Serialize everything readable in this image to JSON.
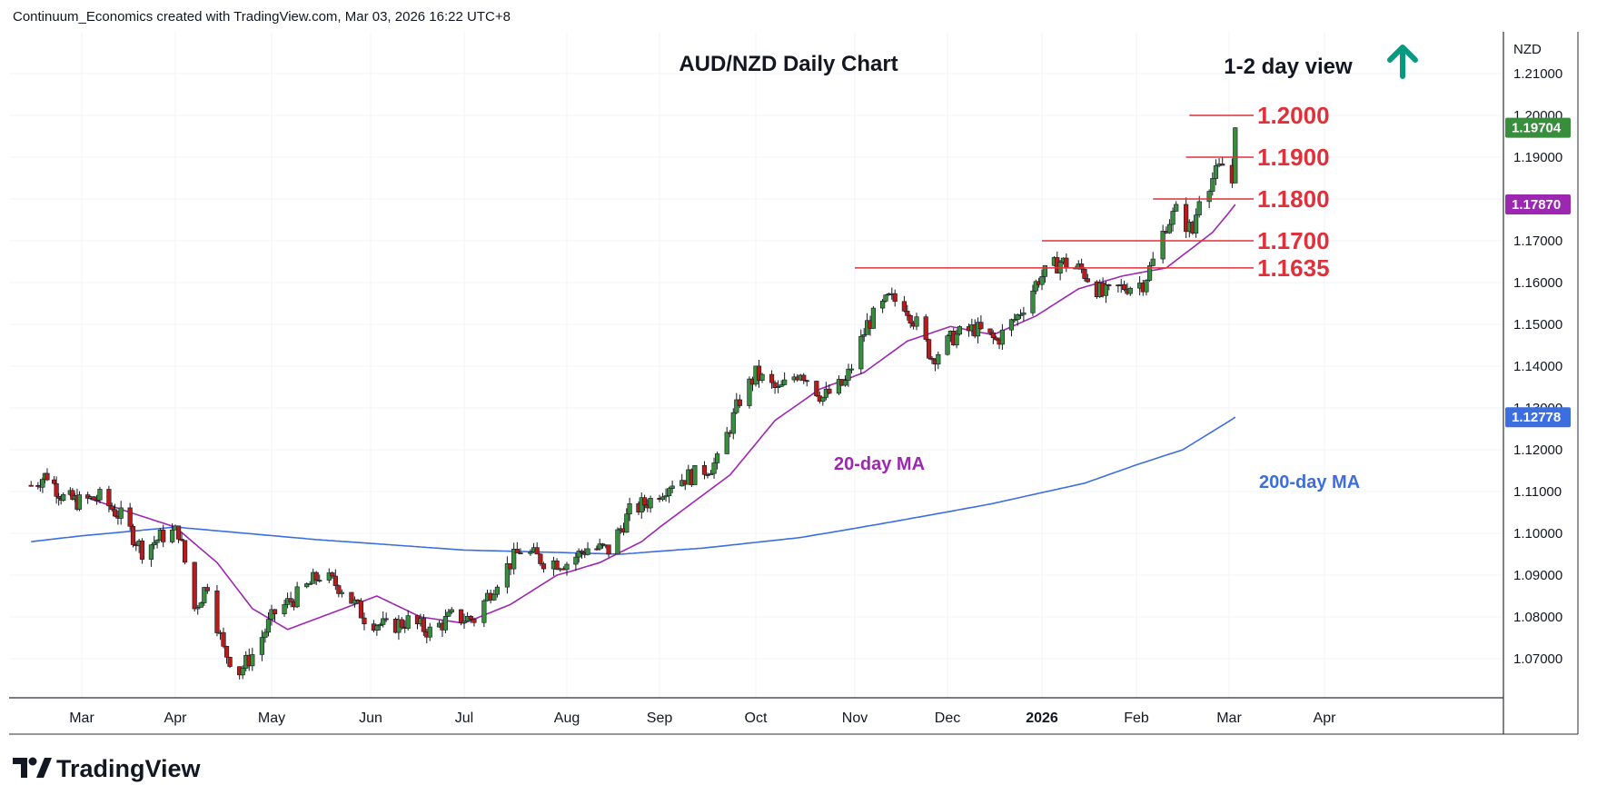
{
  "header_text": "Continuum_Economics created with TradingView.com, Mar 03, 2026 16:22 UTC+8",
  "brand": {
    "name": "TradingView",
    "icon": "tradingview-logo-icon"
  },
  "view_label": "1-2 day view",
  "view_arrow": {
    "icon": "arrow-up-icon",
    "color": "#089981"
  },
  "colors": {
    "up": "#388e3c",
    "down": "#b71c1c",
    "level": "#e0303a",
    "ma20": "#9c27b0",
    "ma200": "#3c6ee0",
    "arrow": "#089981"
  },
  "chart_data": {
    "type": "candlestick",
    "title": "AUD/NZD Daily Chart",
    "currency": "NZD",
    "ylim": [
      1.06,
      1.22
    ],
    "y_ticks": [
      "1.21000",
      "1.20000",
      "1.19000",
      "1.18000",
      "1.17000",
      "1.16000",
      "1.15000",
      "1.14000",
      "1.13000",
      "1.12000",
      "1.11000",
      "1.10000",
      "1.09000",
      "1.08000",
      "1.07000"
    ],
    "x_ticks": [
      {
        "label": "Mar",
        "date": "2025-03-01"
      },
      {
        "label": "Apr",
        "date": "2025-04-01"
      },
      {
        "label": "May",
        "date": "2025-05-01"
      },
      {
        "label": "Jun",
        "date": "2025-06-01"
      },
      {
        "label": "Jul",
        "date": "2025-07-01"
      },
      {
        "label": "Aug",
        "date": "2025-08-01"
      },
      {
        "label": "Sep",
        "date": "2025-09-01"
      },
      {
        "label": "Oct",
        "date": "2025-10-01"
      },
      {
        "label": "Nov",
        "date": "2025-11-01"
      },
      {
        "label": "Dec",
        "date": "2025-12-01"
      },
      {
        "label": "2026",
        "date": "2026-01-01",
        "bold": true
      },
      {
        "label": "Feb",
        "date": "2026-02-01"
      },
      {
        "label": "Mar",
        "date": "2026-03-01"
      },
      {
        "label": "Apr",
        "date": "2026-04-01"
      }
    ],
    "price_path": [
      [
        "2025-02-07",
        1.1115
      ],
      [
        "2025-02-14",
        1.114
      ],
      [
        "2025-02-21",
        1.1085
      ],
      [
        "2025-02-28",
        1.1075
      ],
      [
        "2025-03-07",
        1.1085
      ],
      [
        "2025-03-14",
        1.104
      ],
      [
        "2025-03-21",
        1.096
      ],
      [
        "2025-03-28",
        1.0995
      ],
      [
        "2025-04-02",
        1.1005
      ],
      [
        "2025-04-07",
        1.082
      ],
      [
        "2025-04-11",
        1.088
      ],
      [
        "2025-04-16",
        1.072
      ],
      [
        "2025-04-21",
        1.067
      ],
      [
        "2025-04-25",
        1.071
      ],
      [
        "2025-05-02",
        1.081
      ],
      [
        "2025-05-09",
        1.085
      ],
      [
        "2025-05-16",
        1.09
      ],
      [
        "2025-05-23",
        1.087
      ],
      [
        "2025-05-30",
        1.08
      ],
      [
        "2025-06-06",
        1.0775
      ],
      [
        "2025-06-13",
        1.079
      ],
      [
        "2025-06-20",
        1.0765
      ],
      [
        "2025-06-27",
        1.08
      ],
      [
        "2025-07-04",
        1.0795
      ],
      [
        "2025-07-11",
        1.089
      ],
      [
        "2025-07-18",
        1.096
      ],
      [
        "2025-07-25",
        1.0935
      ],
      [
        "2025-08-01",
        1.093
      ],
      [
        "2025-08-08",
        1.0965
      ],
      [
        "2025-08-15",
        1.096
      ],
      [
        "2025-08-22",
        1.105
      ],
      [
        "2025-08-29",
        1.108
      ],
      [
        "2025-09-05",
        1.1125
      ],
      [
        "2025-09-12",
        1.114
      ],
      [
        "2025-09-19",
        1.117
      ],
      [
        "2025-09-26",
        1.132
      ],
      [
        "2025-10-01",
        1.138
      ],
      [
        "2025-10-08",
        1.134
      ],
      [
        "2025-10-15",
        1.139
      ],
      [
        "2025-10-22",
        1.1325
      ],
      [
        "2025-10-29",
        1.136
      ],
      [
        "2025-11-05",
        1.15
      ],
      [
        "2025-11-12",
        1.156
      ],
      [
        "2025-11-17",
        1.155
      ],
      [
        "2025-11-21",
        1.15
      ],
      [
        "2025-11-26",
        1.142
      ],
      [
        "2025-12-03",
        1.147
      ],
      [
        "2025-12-10",
        1.149
      ],
      [
        "2025-12-17",
        1.146
      ],
      [
        "2025-12-24",
        1.152
      ],
      [
        "2025-12-31",
        1.161
      ],
      [
        "2026-01-07",
        1.165
      ],
      [
        "2026-01-14",
        1.163
      ],
      [
        "2026-01-21",
        1.157
      ],
      [
        "2026-01-28",
        1.159
      ],
      [
        "2026-02-03",
        1.16
      ],
      [
        "2026-02-06",
        1.165
      ],
      [
        "2026-02-10",
        1.174
      ],
      [
        "2026-02-13",
        1.177
      ],
      [
        "2026-02-18",
        1.172
      ],
      [
        "2026-02-20",
        1.181
      ],
      [
        "2026-02-25",
        1.186
      ],
      [
        "2026-02-27",
        1.188
      ],
      [
        "2026-03-02",
        1.184
      ],
      [
        "2026-03-03",
        1.197
      ]
    ],
    "ma20_path": [
      [
        "2025-03-03",
        1.1085
      ],
      [
        "2025-03-17",
        1.105
      ],
      [
        "2025-04-01",
        1.1015
      ],
      [
        "2025-04-14",
        1.093
      ],
      [
        "2025-04-25",
        1.082
      ],
      [
        "2025-05-06",
        1.077
      ],
      [
        "2025-05-20",
        1.081
      ],
      [
        "2025-06-03",
        1.085
      ],
      [
        "2025-06-17",
        1.08
      ],
      [
        "2025-07-01",
        1.0785
      ],
      [
        "2025-07-15",
        1.083
      ],
      [
        "2025-07-29",
        1.09
      ],
      [
        "2025-08-12",
        1.093
      ],
      [
        "2025-08-26",
        1.098
      ],
      [
        "2025-09-09",
        1.106
      ],
      [
        "2025-09-23",
        1.114
      ],
      [
        "2025-10-07",
        1.127
      ],
      [
        "2025-10-21",
        1.1345
      ],
      [
        "2025-11-04",
        1.1385
      ],
      [
        "2025-11-18",
        1.146
      ],
      [
        "2025-12-02",
        1.1495
      ],
      [
        "2025-12-16",
        1.1475
      ],
      [
        "2025-12-30",
        1.152
      ],
      [
        "2026-01-13",
        1.1585
      ],
      [
        "2026-01-27",
        1.1615
      ],
      [
        "2026-02-10",
        1.1635
      ],
      [
        "2026-02-24",
        1.172
      ],
      [
        "2026-03-03",
        1.1787
      ]
    ],
    "ma200_path": [
      [
        "2025-02-07",
        1.098
      ],
      [
        "2025-03-10",
        1.1
      ],
      [
        "2025-04-01",
        1.1015
      ],
      [
        "2025-05-15",
        1.0985
      ],
      [
        "2025-07-01",
        1.096
      ],
      [
        "2025-08-19",
        1.095
      ],
      [
        "2025-09-15",
        1.0965
      ],
      [
        "2025-10-15",
        1.099
      ],
      [
        "2025-11-15",
        1.103
      ],
      [
        "2025-12-15",
        1.107
      ],
      [
        "2026-01-15",
        1.112
      ],
      [
        "2026-02-15",
        1.12
      ],
      [
        "2026-03-03",
        1.1278
      ]
    ],
    "series": [
      {
        "name": "20-day MA",
        "last": "1.17870",
        "color": "#9c27b0"
      },
      {
        "name": "200-day MA",
        "last": "1.12778",
        "color": "#3c6ee0"
      }
    ],
    "last_price": "1.19704",
    "levels": [
      {
        "label": "1.2000",
        "value": 1.2,
        "start": "2026-02-17"
      },
      {
        "label": "1.1900",
        "value": 1.19,
        "start": "2026-02-16"
      },
      {
        "label": "1.1800",
        "value": 1.18,
        "start": "2026-02-06"
      },
      {
        "label": "1.1700",
        "value": 1.17,
        "start": "2026-01-01"
      },
      {
        "label": "1.1635",
        "value": 1.1635,
        "start": "2025-11-01"
      }
    ]
  }
}
